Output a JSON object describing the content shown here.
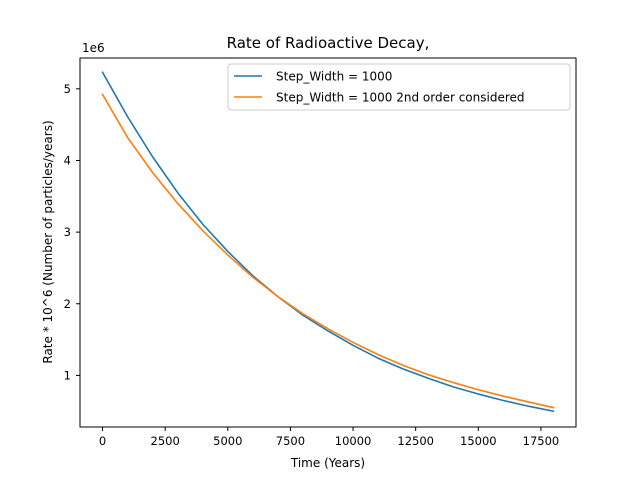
{
  "chart_data": {
    "type": "line",
    "title": "Rate of Radioactive Decay,",
    "xlabel": "Time (Years)",
    "ylabel": "Rate * 10^6 (Number of particles/years)",
    "y_offset_label": "1e6",
    "xlim": [
      -900,
      18900
    ],
    "ylim": [
      0.28,
      5.43
    ],
    "x_ticks": [
      0,
      2500,
      5000,
      7500,
      10000,
      12500,
      15000,
      17500
    ],
    "x_tick_labels": [
      "0",
      "2500",
      "5000",
      "7500",
      "10000",
      "12500",
      "15000",
      "17500"
    ],
    "y_ticks": [
      1,
      2,
      3,
      4,
      5
    ],
    "y_tick_labels": [
      "1",
      "2",
      "3",
      "4",
      "5"
    ],
    "grid": false,
    "legend_position": "top-right",
    "x": [
      0,
      1000,
      2000,
      3000,
      4000,
      5000,
      6000,
      7000,
      8000,
      9000,
      10000,
      11000,
      12000,
      13000,
      14000,
      15000,
      16000,
      17000,
      18000
    ],
    "series": [
      {
        "name": "Step_Width = 1000",
        "color": "#1f77b4",
        "values": [
          5.23,
          4.61,
          4.05,
          3.55,
          3.11,
          2.73,
          2.39,
          2.1,
          1.84,
          1.62,
          1.42,
          1.24,
          1.09,
          0.96,
          0.84,
          0.74,
          0.65,
          0.57,
          0.5
        ]
      },
      {
        "name": "Step_Width = 1000 2nd order considered",
        "color": "#ff7f0e",
        "values": [
          4.92,
          4.32,
          3.83,
          3.4,
          3.02,
          2.68,
          2.37,
          2.1,
          1.86,
          1.65,
          1.46,
          1.29,
          1.14,
          1.01,
          0.9,
          0.8,
          0.71,
          0.63,
          0.55
        ]
      }
    ]
  }
}
